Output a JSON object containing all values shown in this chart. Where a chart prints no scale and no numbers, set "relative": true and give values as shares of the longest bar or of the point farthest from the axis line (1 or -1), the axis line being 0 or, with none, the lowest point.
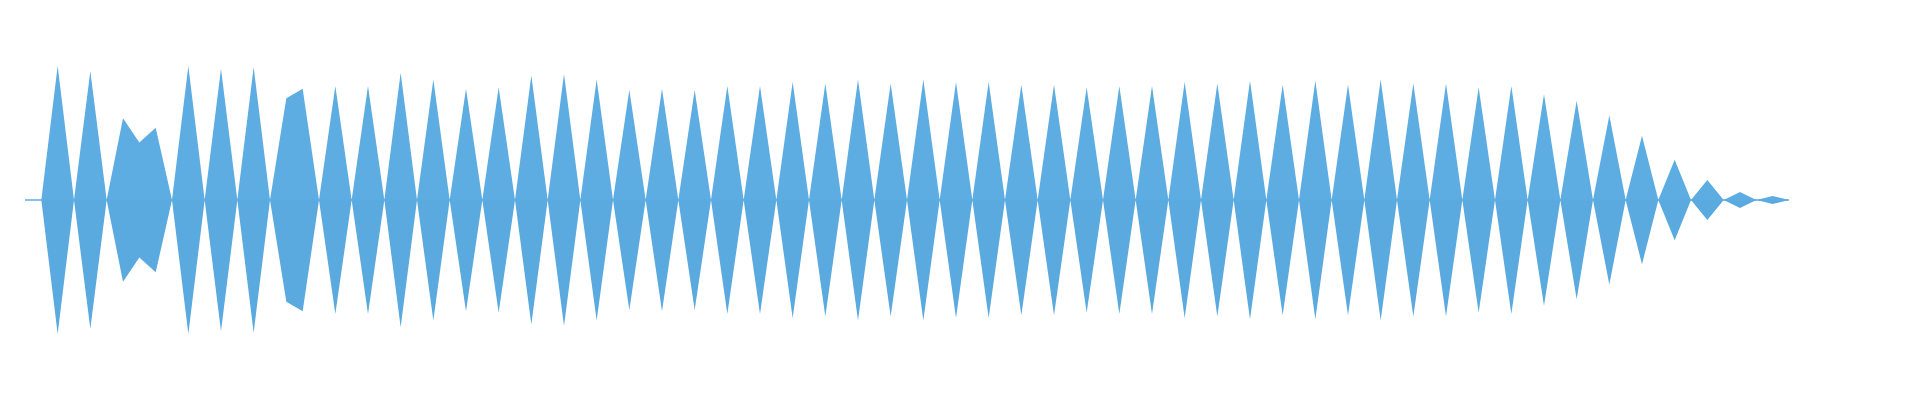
{
  "chart_data": {
    "type": "area",
    "relative": true,
    "categories": [
      null,
      null,
      null,
      null,
      null,
      null,
      null,
      null,
      null,
      null,
      null,
      null,
      null,
      null,
      null,
      null,
      null,
      null,
      null,
      null,
      null,
      null,
      null,
      null,
      null,
      null,
      null,
      null,
      null,
      null,
      null,
      null,
      null,
      null,
      null,
      null,
      null,
      null,
      null,
      null,
      null,
      null,
      null,
      null,
      null,
      null,
      null,
      null,
      null,
      null,
      null,
      null,
      null,
      null,
      null,
      null,
      null,
      null,
      null,
      null,
      null,
      null,
      null,
      null,
      null,
      null,
      null,
      null,
      null,
      null,
      null,
      null,
      null,
      null,
      null,
      null,
      null,
      null,
      null,
      null,
      null,
      null,
      null,
      null,
      null,
      null,
      null,
      null,
      null,
      null,
      null,
      null,
      null,
      null,
      null,
      null,
      null,
      null,
      null,
      null,
      null,
      null,
      null,
      null,
      null,
      null,
      null,
      null,
      null
    ],
    "series": [
      {
        "color": "#5dace2",
        "values": [
          0,
          0,
          1.0,
          0,
          0.96,
          0,
          0.61,
          0.43,
          0.54,
          0,
          1.0,
          0,
          0.98,
          0,
          0.99,
          0,
          0.76,
          0.83,
          0,
          0.85,
          0,
          0.85,
          0,
          0.95,
          0,
          0.9,
          0,
          0.83,
          0,
          0.84,
          0,
          0.93,
          0,
          0.94,
          0,
          0.9,
          0,
          0.82,
          0,
          0.83,
          0,
          0.82,
          0,
          0.85,
          0,
          0.85,
          0,
          0.88,
          0,
          0.87,
          0,
          0.9,
          0,
          0.87,
          0,
          0.9,
          0,
          0.88,
          0,
          0.88,
          0,
          0.86,
          0,
          0.86,
          0,
          0.84,
          0,
          0.85,
          0,
          0.85,
          0,
          0.88,
          0,
          0.87,
          0,
          0.89,
          0,
          0.86,
          0,
          0.89,
          0,
          0.86,
          0,
          0.9,
          0,
          0.87,
          0,
          0.87,
          0,
          0.84,
          0,
          0.85,
          0,
          0.79,
          0,
          0.74,
          0,
          0.63,
          0,
          0.48,
          0,
          0.3,
          0,
          0.15,
          0,
          0.06,
          0,
          0.03,
          0
        ]
      },
      {
        "color": "#5aa9df",
        "values": [
          0,
          0,
          -1.0,
          0,
          -0.96,
          0,
          -0.61,
          -0.43,
          -0.54,
          0,
          -1.0,
          0,
          -0.98,
          0,
          -0.99,
          0,
          -0.76,
          -0.83,
          0,
          -0.85,
          0,
          -0.85,
          0,
          -0.95,
          0,
          -0.9,
          0,
          -0.83,
          0,
          -0.84,
          0,
          -0.93,
          0,
          -0.94,
          0,
          -0.9,
          0,
          -0.82,
          0,
          -0.83,
          0,
          -0.82,
          0,
          -0.85,
          0,
          -0.85,
          0,
          -0.88,
          0,
          -0.87,
          0,
          -0.9,
          0,
          -0.87,
          0,
          -0.9,
          0,
          -0.88,
          0,
          -0.88,
          0,
          -0.86,
          0,
          -0.86,
          0,
          -0.84,
          0,
          -0.85,
          0,
          -0.85,
          0,
          -0.88,
          0,
          -0.87,
          0,
          -0.89,
          0,
          -0.86,
          0,
          -0.89,
          0,
          -0.86,
          0,
          -0.9,
          0,
          -0.87,
          0,
          -0.87,
          0,
          -0.84,
          0,
          -0.85,
          0,
          -0.79,
          0,
          -0.74,
          0,
          -0.63,
          0,
          -0.48,
          0,
          -0.3,
          0,
          -0.15,
          0,
          -0.06,
          0,
          -0.03,
          0
        ]
      }
    ]
  }
}
